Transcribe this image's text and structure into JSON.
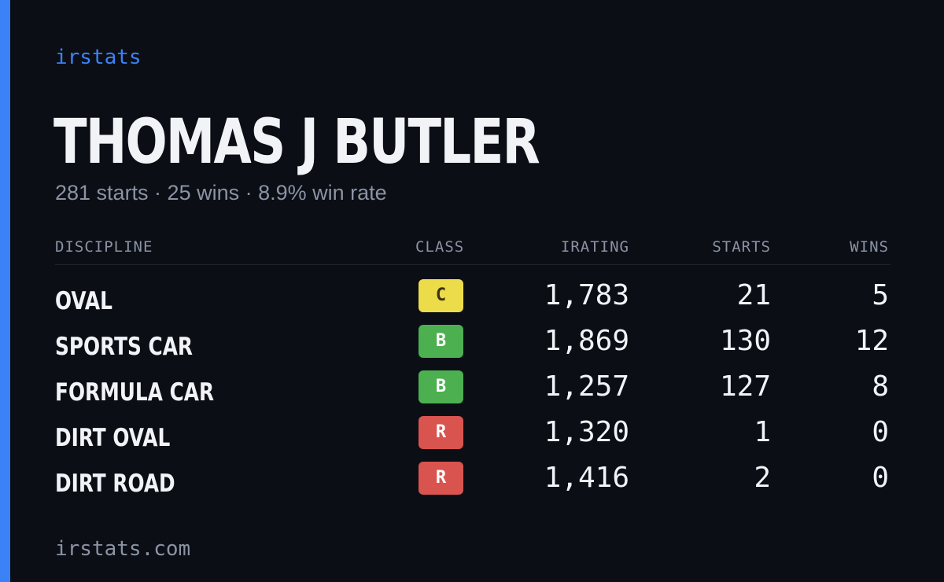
{
  "brand": "irstats",
  "player": {
    "name": "THOMAS J BUTLER",
    "summary": "281 starts · 25 wins · 8.9% win rate"
  },
  "table": {
    "headers": {
      "discipline": "DISCIPLINE",
      "class": "CLASS",
      "irating": "IRATING",
      "starts": "STARTS",
      "wins": "WINS"
    },
    "rows": [
      {
        "discipline": "OVAL",
        "class": "C",
        "class_color": "#ecdc4a",
        "class_text_color": "#3a3410",
        "irating": "1,783",
        "starts": "21",
        "wins": "5"
      },
      {
        "discipline": "SPORTS CAR",
        "class": "B",
        "class_color": "#4caf50",
        "class_text_color": "#ffffff",
        "irating": "1,869",
        "starts": "130",
        "wins": "12"
      },
      {
        "discipline": "FORMULA CAR",
        "class": "B",
        "class_color": "#4caf50",
        "class_text_color": "#ffffff",
        "irating": "1,257",
        "starts": "127",
        "wins": "8"
      },
      {
        "discipline": "DIRT OVAL",
        "class": "R",
        "class_color": "#d9534f",
        "class_text_color": "#ffffff",
        "irating": "1,320",
        "starts": "1",
        "wins": "0"
      },
      {
        "discipline": "DIRT ROAD",
        "class": "R",
        "class_color": "#d9534f",
        "class_text_color": "#ffffff",
        "irating": "1,416",
        "starts": "2",
        "wins": "0"
      }
    ]
  },
  "footer": "irstats.com",
  "colors": {
    "accent": "#3b82f6",
    "background": "#0b0e15",
    "muted": "#8b93a4",
    "text": "#f1f3f7"
  }
}
